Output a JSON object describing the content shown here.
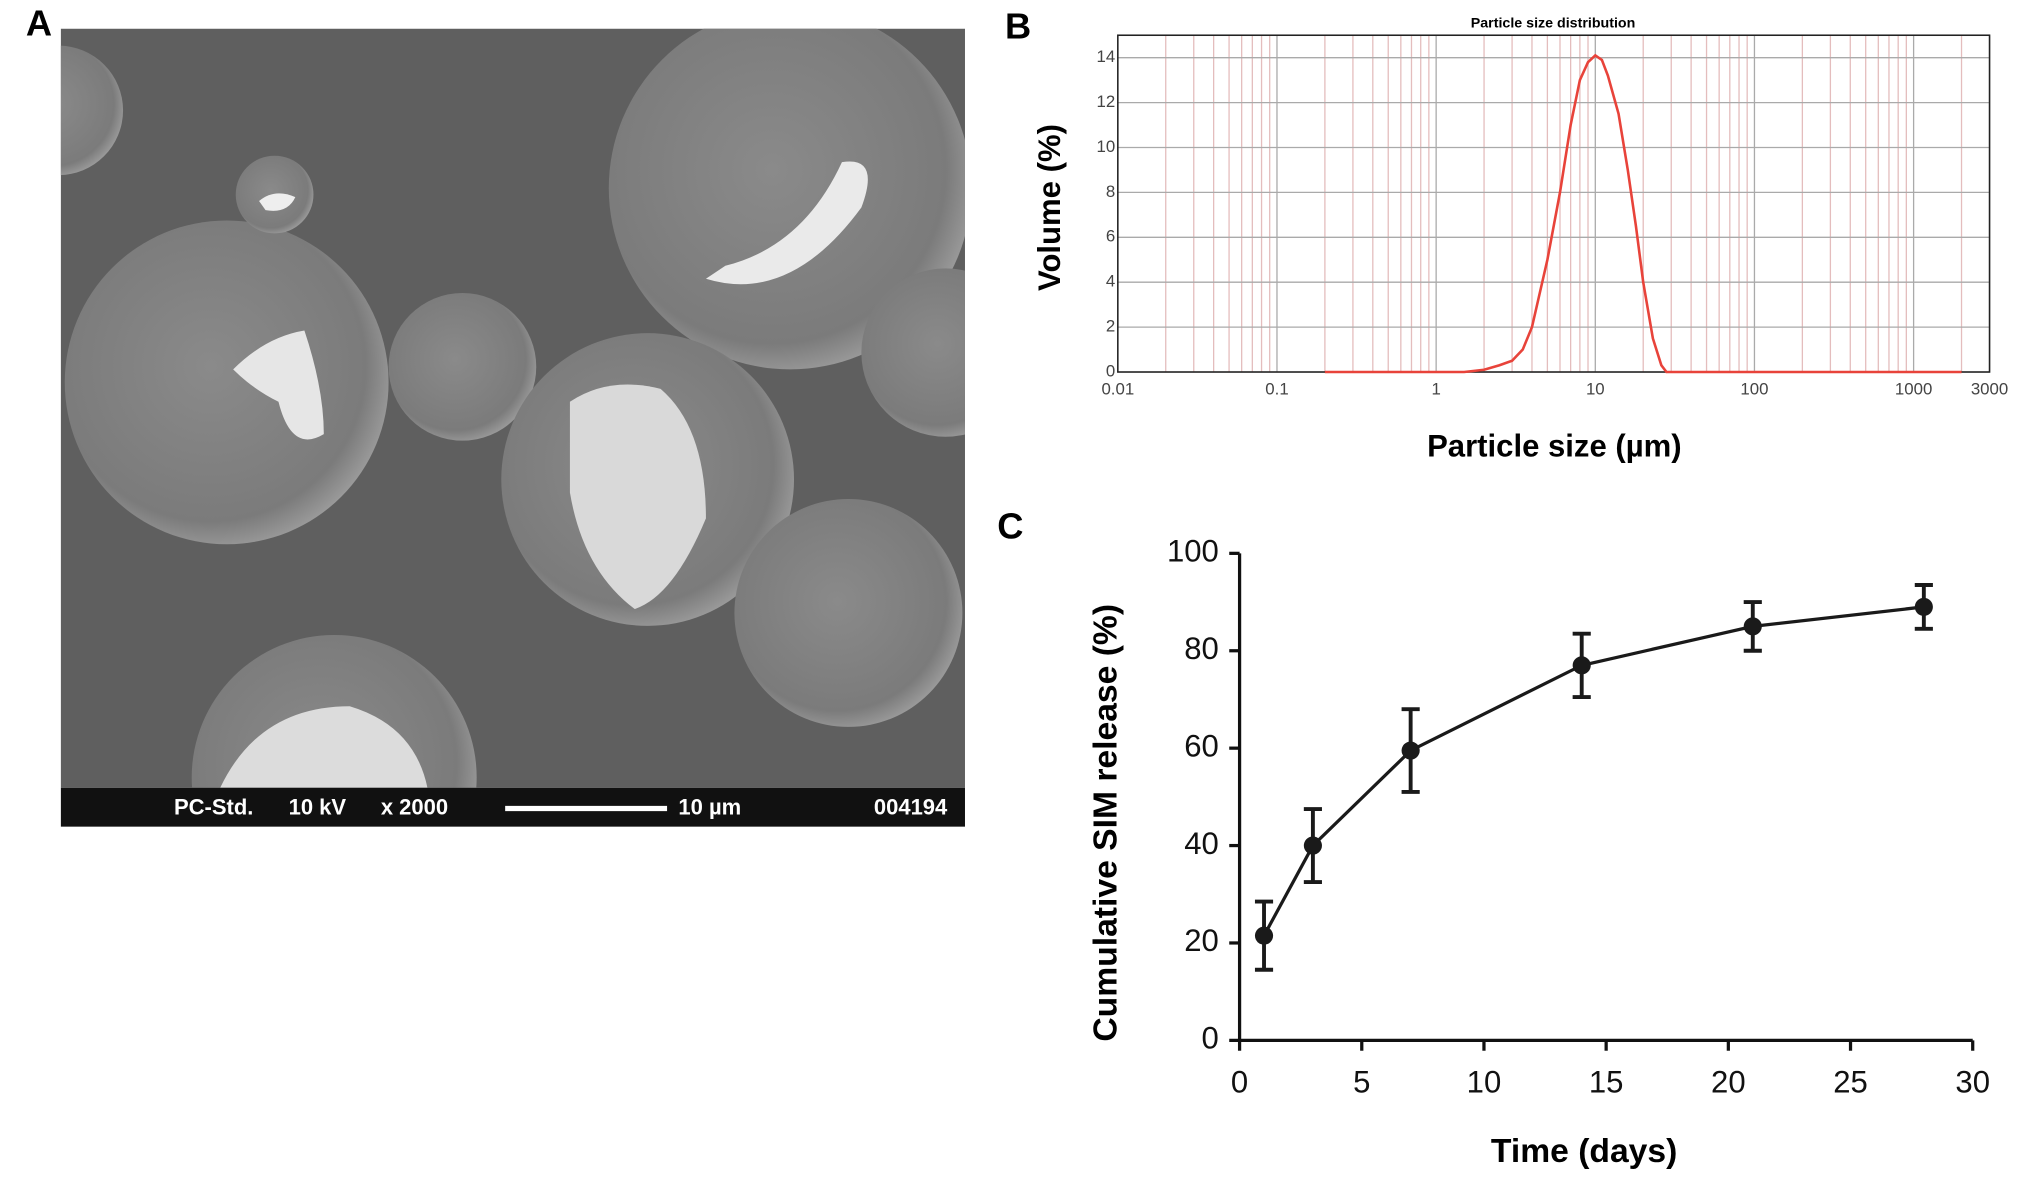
{
  "micrograph": {
    "panel_label": "A",
    "info_bar": [
      "PC-Std.",
      "10 kV",
      "x 2000",
      "10 µm",
      "004194"
    ]
  },
  "chart_data": [
    {
      "type": "line",
      "panel_label": "B",
      "title": "Particle size distribution",
      "x_label": "Particle size (µm)",
      "y_label": "Volume (%)",
      "xscale": "log",
      "xlim": [
        0.01,
        3000
      ],
      "xticks": [
        0.01,
        0.1,
        1,
        10,
        100,
        1000,
        3000
      ],
      "ylim": [
        0,
        15
      ],
      "yticks": [
        0,
        2,
        4,
        6,
        8,
        10,
        12,
        14
      ],
      "grid": true,
      "minor_grid": true,
      "x": [
        0.2,
        0.5,
        1,
        1.5,
        2,
        2.5,
        3,
        3.5,
        4,
        5,
        6,
        7,
        8,
        9,
        10,
        11,
        12,
        14,
        16,
        18,
        20,
        23,
        26,
        28,
        50,
        100,
        500,
        2000
      ],
      "series": [
        {
          "name": "Volume",
          "color": "#e8433a",
          "values": [
            0,
            0,
            0,
            0,
            0.1,
            0.3,
            0.5,
            1,
            2,
            5,
            8,
            11,
            13,
            13.8,
            14.1,
            13.9,
            13.2,
            11.5,
            9,
            6.5,
            4,
            1.5,
            0.3,
            0,
            0,
            0,
            0,
            0
          ]
        }
      ]
    },
    {
      "type": "line",
      "panel_label": "C",
      "x_label": "Time (days)",
      "y_label": "Cumulative SIM release (%)",
      "xlim": [
        0,
        30
      ],
      "xticks": [
        0,
        5,
        10,
        15,
        20,
        25,
        30
      ],
      "ylim": [
        0,
        100
      ],
      "yticks": [
        0,
        20,
        40,
        60,
        80,
        100
      ],
      "grid": false,
      "markers": true,
      "x": [
        1,
        3,
        7,
        14,
        21,
        28
      ],
      "series": [
        {
          "name": "SIM release",
          "color": "#1a1a1a",
          "values": [
            21.5,
            40,
            59.5,
            77,
            85,
            89
          ],
          "errors": [
            7,
            7.5,
            8.5,
            6.5,
            5,
            4.5
          ]
        }
      ]
    }
  ]
}
